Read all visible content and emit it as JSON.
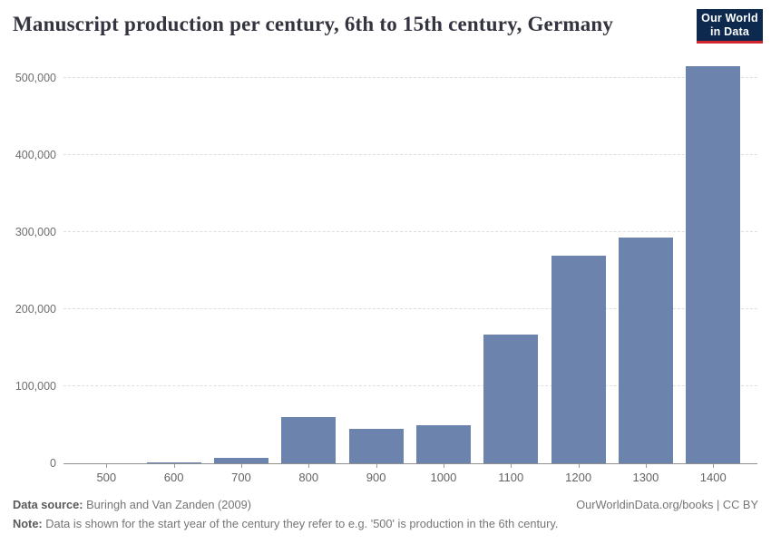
{
  "header": {
    "title": "Manuscript production per century, 6th to 15th century, Germany",
    "logo": {
      "line1": "Our World",
      "line2": "in Data",
      "bg_color": "#0d2a4e",
      "accent_color": "#d2252d"
    }
  },
  "chart_data": {
    "type": "bar",
    "title": "Manuscript production per century, 6th to 15th century, Germany",
    "categories": [
      "500",
      "600",
      "700",
      "800",
      "900",
      "1000",
      "1100",
      "1200",
      "1300",
      "1400"
    ],
    "values": [
      0,
      1000,
      7000,
      60000,
      45000,
      50000,
      167000,
      270000,
      293000,
      515000
    ],
    "xlabel": "",
    "ylabel": "",
    "ylim": [
      0,
      500000
    ],
    "yticks": [
      {
        "value": 0,
        "label": "0"
      },
      {
        "value": 100000,
        "label": "100,000"
      },
      {
        "value": 200000,
        "label": "200,000"
      },
      {
        "value": 300000,
        "label": "300,000"
      },
      {
        "value": 400000,
        "label": "400,000"
      },
      {
        "value": 500000,
        "label": "500,000"
      }
    ],
    "bar_color": "#6c83ad",
    "grid": "horizontal-dashed",
    "legend": "none"
  },
  "footer": {
    "source_label": "Data source:",
    "source_text": " Buringh and Van Zanden (2009)",
    "note_label": "Note:",
    "note_text": " Data is shown for the start year of the century they refer to e.g. '500' is production in the 6th century.",
    "link": "OurWorldinData.org/books | CC BY"
  }
}
